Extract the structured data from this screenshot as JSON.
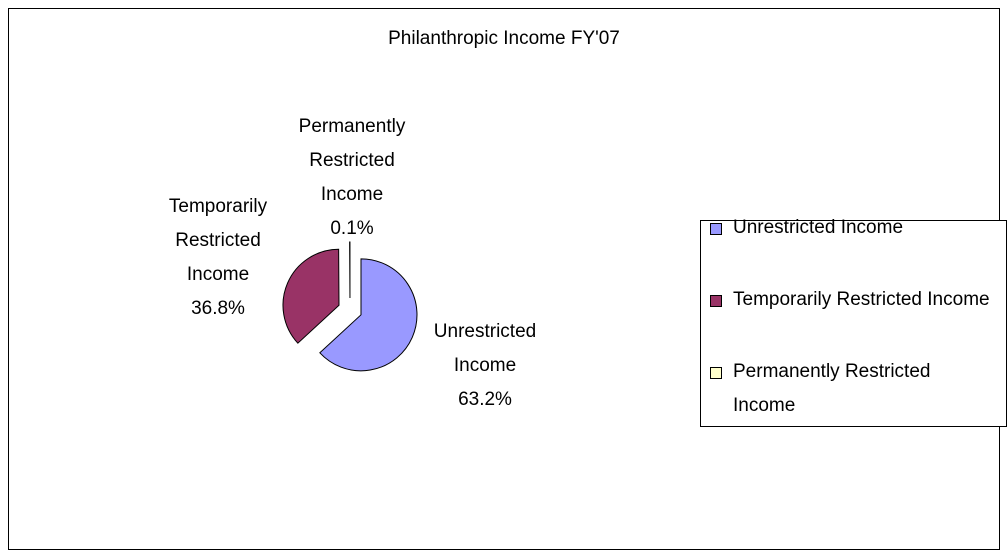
{
  "chart_data": {
    "type": "pie",
    "title": "Philanthropic Income FY'07",
    "categories": [
      "Unrestricted Income",
      "Temporarily Restricted Income",
      "Permanently Restricted Income"
    ],
    "values": [
      63.2,
      36.8,
      0.1
    ],
    "value_labels": [
      "63.2%",
      "36.8%",
      "0.1%"
    ],
    "colors": [
      "#9999ff",
      "#993366",
      "#ffffcc"
    ],
    "legend": "right"
  }
}
